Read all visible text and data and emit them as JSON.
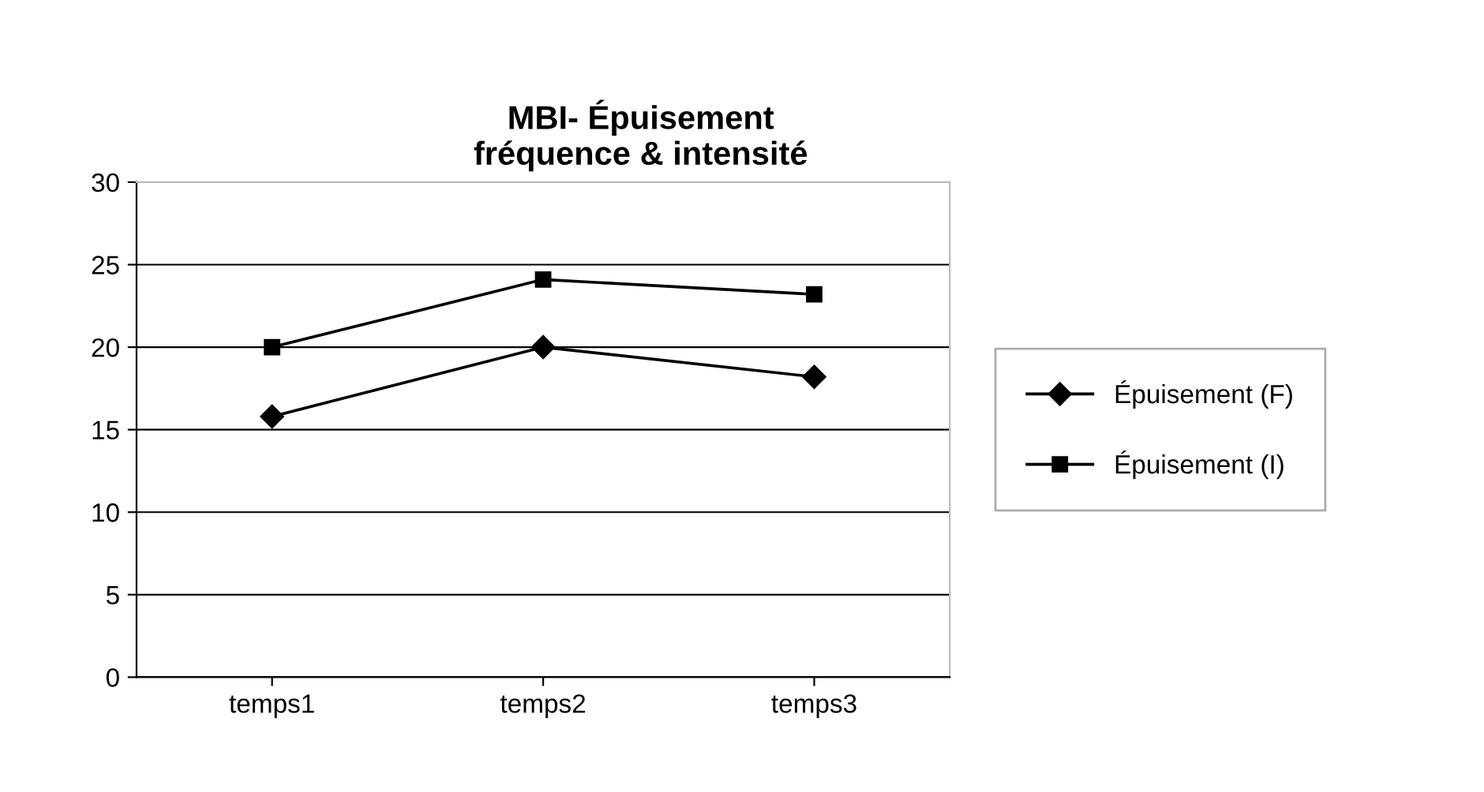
{
  "chart_data": {
    "type": "line",
    "title": "MBI- Épuisement\nfréquence & intensité",
    "categories": [
      "temps1",
      "temps2",
      "temps3"
    ],
    "series": [
      {
        "name": "Épuisement (F)",
        "color": "#000000",
        "marker": "diamond",
        "values": [
          15.8,
          20.0,
          18.2
        ]
      },
      {
        "name": "Épuisement (I)",
        "color": "#000000",
        "marker": "square",
        "values": [
          20.0,
          24.1,
          23.2
        ]
      }
    ],
    "ylim": [
      0,
      30
    ],
    "yticks": [
      0,
      5,
      10,
      15,
      20,
      25,
      30
    ],
    "grid": "y",
    "legend": "right",
    "line_style": "solid"
  }
}
